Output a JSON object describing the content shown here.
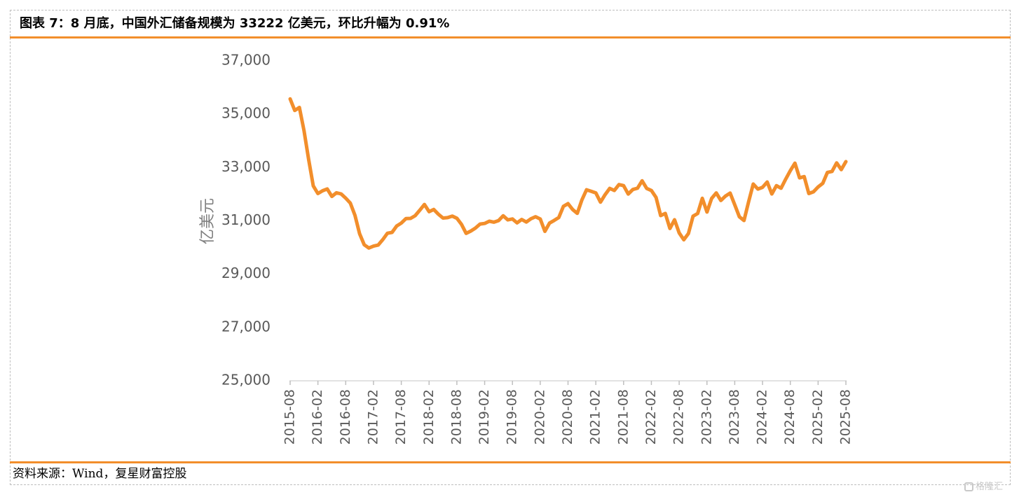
{
  "title": "图表 7：8 月底，中国外汇储备规模为 33222 亿美元，环比升幅为 0.91%",
  "source": "资料来源：Wind，复星财富控股",
  "watermark": "格隆汇",
  "colors": {
    "line": "#f28e2b",
    "rule": "#f28e2b",
    "axis": "#595959"
  },
  "chart_data": {
    "type": "line",
    "ylabel": "亿美元",
    "xlabel": "",
    "ylim": [
      25000,
      37000
    ],
    "y_ticks": [
      "25,000",
      "27,000",
      "29,000",
      "31,000",
      "33,000",
      "35,000",
      "37,000"
    ],
    "y_tick_values": [
      25000,
      27000,
      29000,
      31000,
      33000,
      35000,
      37000
    ],
    "x_tick_labels": [
      "2015-08",
      "2016-02",
      "2016-08",
      "2017-02",
      "2017-08",
      "2018-02",
      "2018-08",
      "2019-02",
      "2019-08",
      "2020-02",
      "2020-08",
      "2021-02",
      "2021-08",
      "2022-02",
      "2022-08",
      "2023-02",
      "2023-08",
      "2024-02",
      "2024-08",
      "2025-02",
      "2025-08"
    ],
    "grid": false,
    "legend": "none",
    "series": [
      {
        "x": [
          "2015-08",
          "2015-09",
          "2015-10",
          "2015-11",
          "2015-12",
          "2016-01",
          "2016-02",
          "2016-03",
          "2016-04",
          "2016-05",
          "2016-06",
          "2016-07",
          "2016-08",
          "2016-09",
          "2016-10",
          "2016-11",
          "2016-12",
          "2017-01",
          "2017-02",
          "2017-03",
          "2017-04",
          "2017-05",
          "2017-06",
          "2017-07",
          "2017-08",
          "2017-09",
          "2017-10",
          "2017-11",
          "2017-12",
          "2018-01",
          "2018-02",
          "2018-03",
          "2018-04",
          "2018-05",
          "2018-06",
          "2018-07",
          "2018-08",
          "2018-09",
          "2018-10",
          "2018-11",
          "2018-12",
          "2019-01",
          "2019-02",
          "2019-03",
          "2019-04",
          "2019-05",
          "2019-06",
          "2019-07",
          "2019-08",
          "2019-09",
          "2019-10",
          "2019-11",
          "2019-12",
          "2020-01",
          "2020-02",
          "2020-03",
          "2020-04",
          "2020-05",
          "2020-06",
          "2020-07",
          "2020-08",
          "2020-09",
          "2020-10",
          "2020-11",
          "2020-12",
          "2021-01",
          "2021-02",
          "2021-03",
          "2021-04",
          "2021-05",
          "2021-06",
          "2021-07",
          "2021-08",
          "2021-09",
          "2021-10",
          "2021-11",
          "2021-12",
          "2022-01",
          "2022-02",
          "2022-03",
          "2022-04",
          "2022-05",
          "2022-06",
          "2022-07",
          "2022-08",
          "2022-09",
          "2022-10",
          "2022-11",
          "2022-12",
          "2023-01",
          "2023-02",
          "2023-03",
          "2023-04",
          "2023-05",
          "2023-06",
          "2023-07",
          "2023-08",
          "2023-09",
          "2023-10",
          "2023-11",
          "2023-12",
          "2024-01",
          "2024-02",
          "2024-03",
          "2024-04",
          "2024-05",
          "2024-06",
          "2024-07",
          "2024-08",
          "2024-09",
          "2024-10",
          "2024-11",
          "2024-12",
          "2025-01",
          "2025-02",
          "2025-03",
          "2025-04",
          "2025-05",
          "2025-06",
          "2025-07",
          "2025-08"
        ],
        "values": [
          35574,
          35141,
          35255,
          34383,
          33304,
          32309,
          32023,
          32128,
          32197,
          31917,
          32052,
          32011,
          31852,
          31664,
          31207,
          30516,
          30105,
          29982,
          30051,
          30091,
          30295,
          30536,
          30568,
          30807,
          30915,
          31085,
          31092,
          31193,
          31399,
          31614,
          31345,
          31428,
          31249,
          31106,
          31121,
          31179,
          31097,
          30870,
          30531,
          30617,
          30727,
          30879,
          30902,
          30988,
          30950,
          31010,
          31192,
          31037,
          31072,
          30924,
          31052,
          30956,
          31079,
          31155,
          31067,
          30606,
          30915,
          31017,
          31123,
          31544,
          31646,
          31426,
          31280,
          31785,
          32165,
          32107,
          32048,
          31701,
          31982,
          32218,
          32140,
          32359,
          32321,
          32006,
          32176,
          32224,
          32502,
          32216,
          32138,
          31880,
          31197,
          31278,
          30713,
          31041,
          30549,
          30290,
          30524,
          31175,
          31277,
          31845,
          31332,
          31839,
          32048,
          31765,
          31930,
          32043,
          31601,
          31151,
          31012,
          31718,
          32380,
          32193,
          32258,
          32457,
          32008,
          32320,
          32224,
          32564,
          32882,
          33164,
          32611,
          32659,
          32024,
          32090,
          32272,
          32407,
          32817,
          32853,
          33174,
          32922,
          33222
        ]
      }
    ]
  }
}
